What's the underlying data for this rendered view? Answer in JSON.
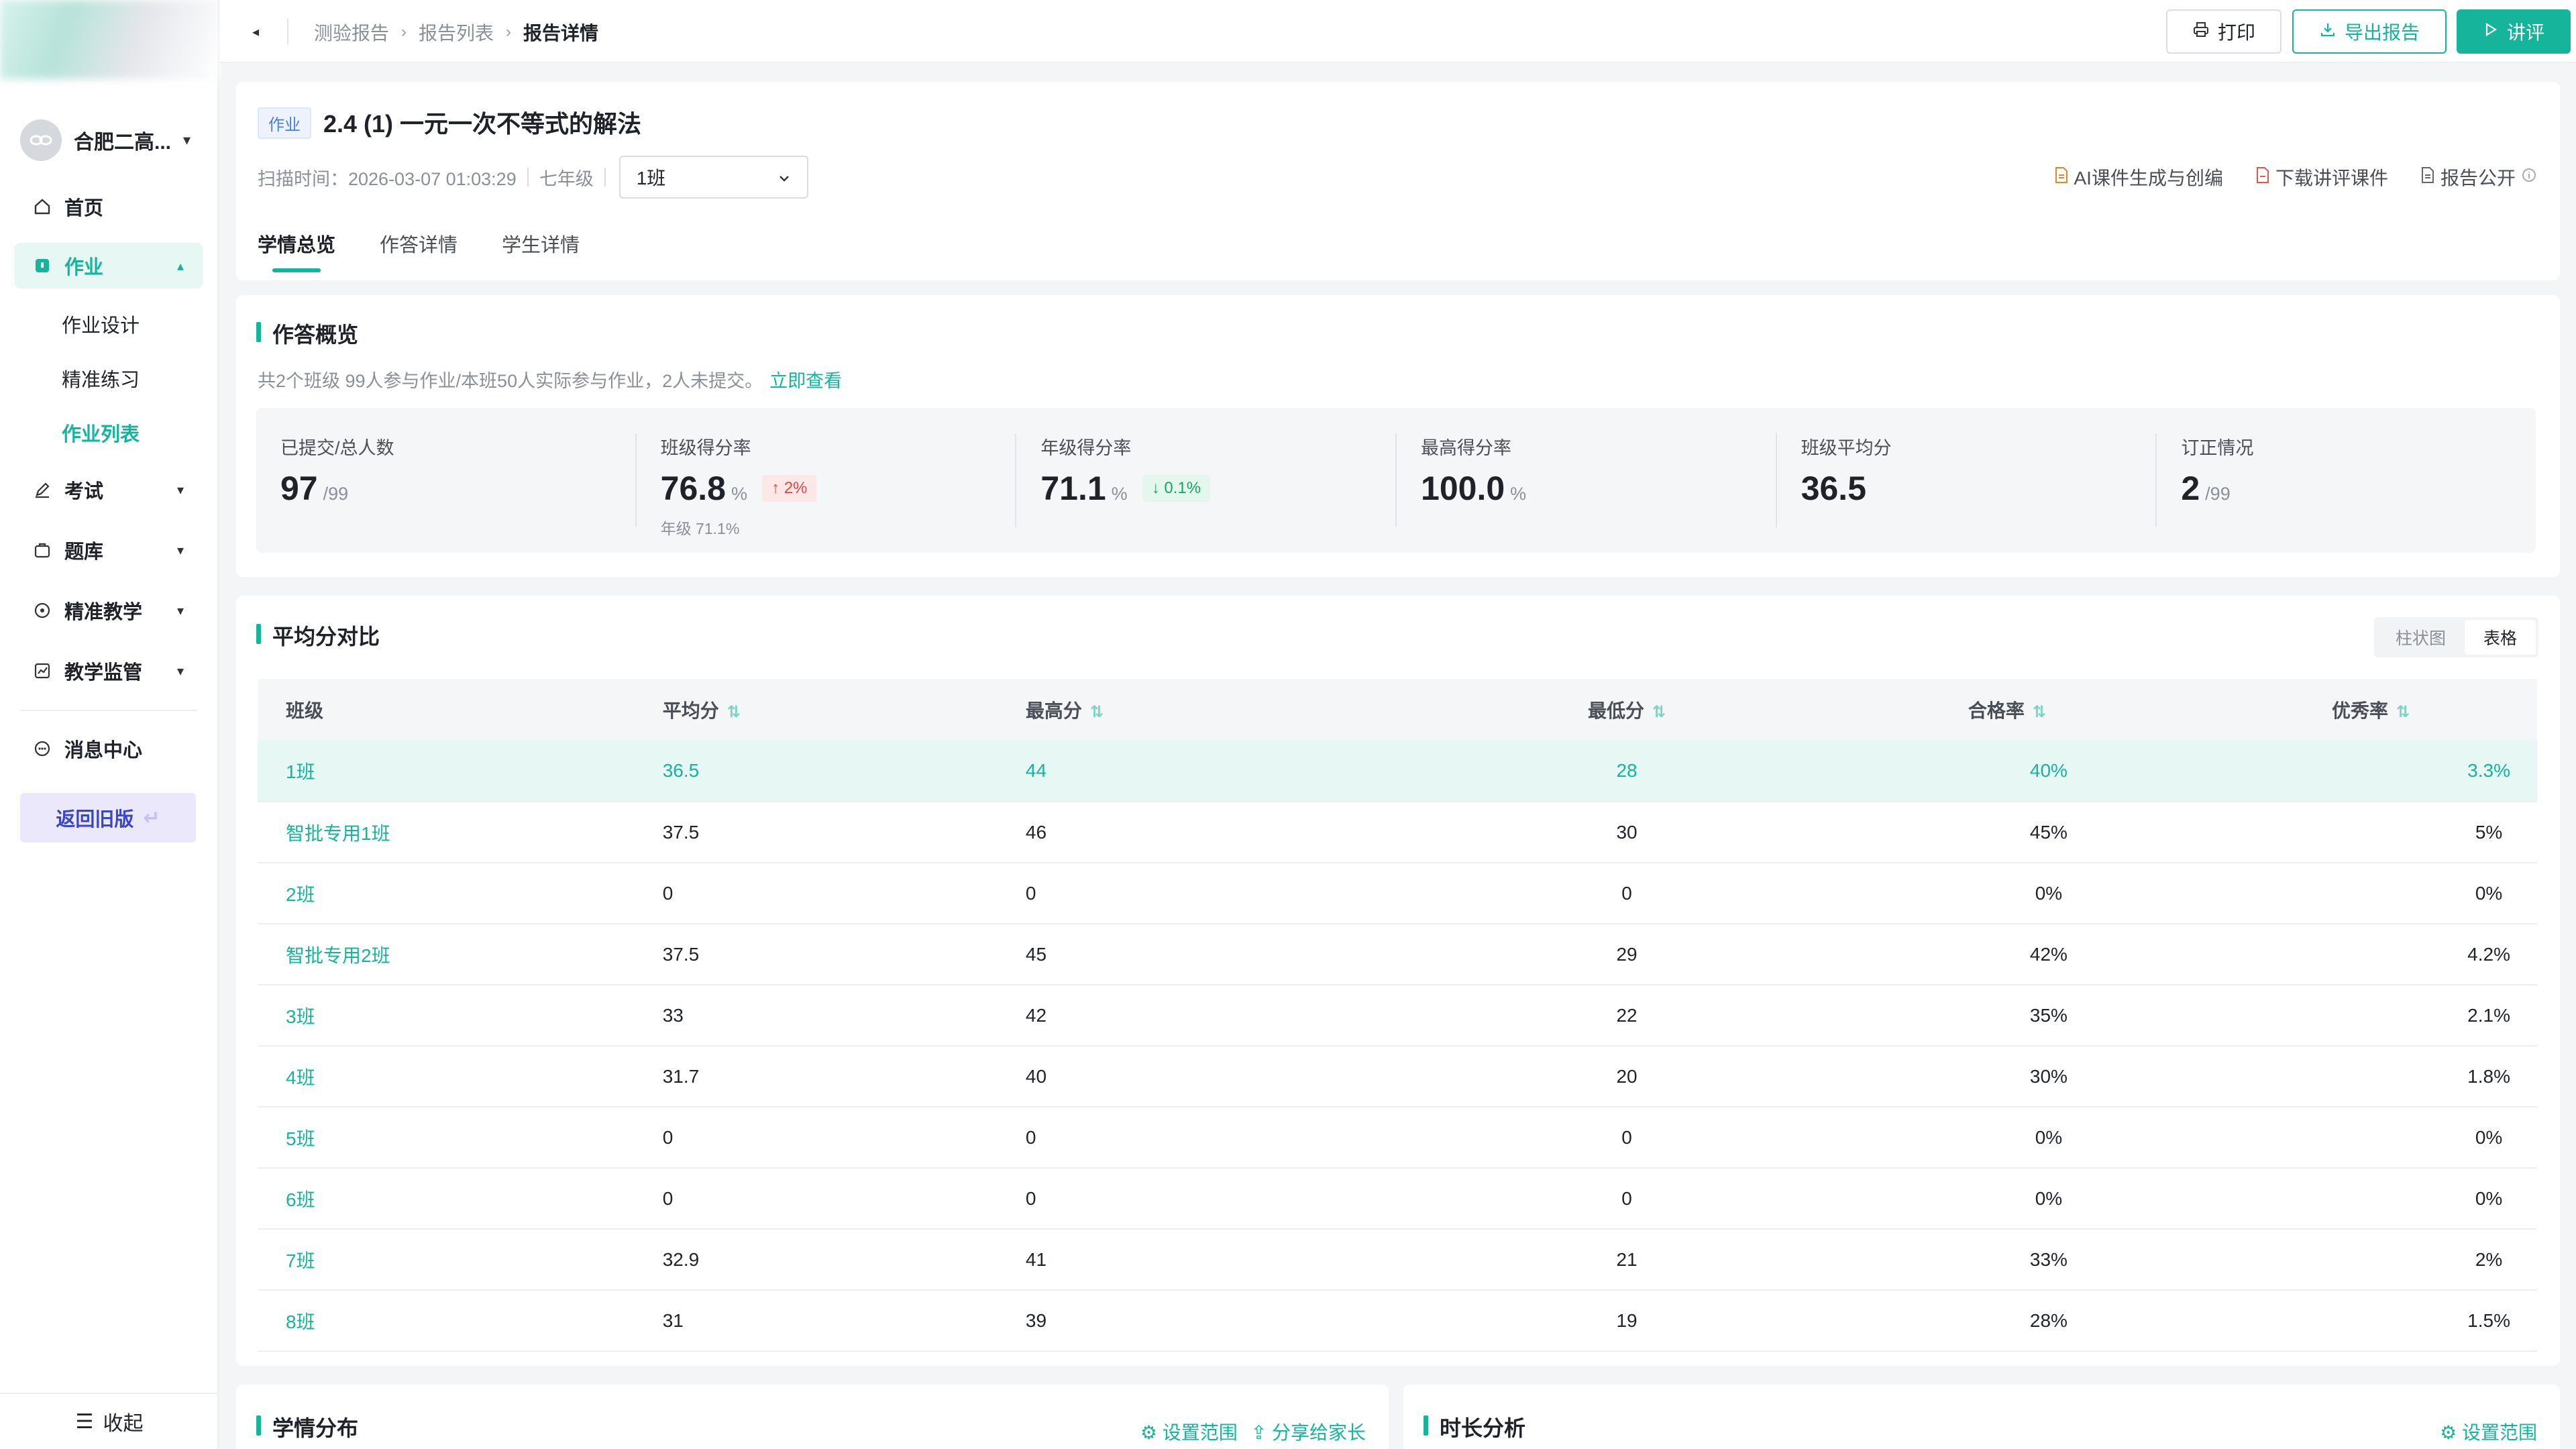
{
  "sidebar": {
    "school": "合肥二高...",
    "nav": {
      "home": "首页",
      "homework": "作业",
      "homework_sub": [
        "作业设计",
        "精准练习",
        "作业列表"
      ],
      "exam": "考试",
      "bank": "题库",
      "teaching": "精准教学",
      "supervise": "教学监管",
      "messages": "消息中心"
    },
    "back_old": "返回旧版",
    "collapse": "收起"
  },
  "topbar": {
    "breadcrumbs": [
      "测验报告",
      "报告列表",
      "报告详情"
    ],
    "print": "打印",
    "export": "导出报告",
    "lecture": "讲评"
  },
  "header": {
    "tag": "作业",
    "title": "2.4 (1) 一元一次不等式的解法",
    "scan_time": "扫描时间：2026-03-07 01:03:29",
    "grade": "七年级",
    "class_selected": "1班",
    "actions": [
      "AI课件生成与创编",
      "下载讲评课件",
      "报告公开"
    ],
    "tabs": [
      "学情总览",
      "作答详情",
      "学生详情"
    ]
  },
  "overview": {
    "title": "作答概览",
    "desc": "共2个班级 99人参与作业/本班50人实际参与作业，2人未提交。",
    "link": "立即查看",
    "stats": [
      {
        "label": "已提交/总人数",
        "value": "97",
        "unit": "/99"
      },
      {
        "label": "班级得分率",
        "value": "76.8",
        "unit": "%",
        "badge": "2%",
        "badge_dir": "up",
        "sub": "年级 71.1%"
      },
      {
        "label": "年级得分率",
        "value": "71.1",
        "unit": "%",
        "badge": "0.1%",
        "badge_dir": "down"
      },
      {
        "label": "最高得分率",
        "value": "100.0",
        "unit": "%"
      },
      {
        "label": "班级平均分",
        "value": "36.5",
        "unit": ""
      },
      {
        "label": "订正情况",
        "value": "2",
        "unit": "/99"
      }
    ]
  },
  "compare": {
    "title": "平均分对比",
    "toggle": [
      "柱状图",
      "表格"
    ],
    "columns": [
      "班级",
      "平均分",
      "最高分",
      "最低分",
      "合格率",
      "优秀率"
    ],
    "rows": [
      [
        "1班",
        "36.5",
        "44",
        "28",
        "40%",
        "3.3%"
      ],
      [
        "智批专用1班",
        "37.5",
        "46",
        "30",
        "45%",
        "5%"
      ],
      [
        "2班",
        "0",
        "0",
        "0",
        "0%",
        "0%"
      ],
      [
        "智批专用2班",
        "37.5",
        "45",
        "29",
        "42%",
        "4.2%"
      ],
      [
        "3班",
        "33",
        "42",
        "22",
        "35%",
        "2.1%"
      ],
      [
        "4班",
        "31.7",
        "40",
        "20",
        "30%",
        "1.8%"
      ],
      [
        "5班",
        "0",
        "0",
        "0",
        "0%",
        "0%"
      ],
      [
        "6班",
        "0",
        "0",
        "0",
        "0%",
        "0%"
      ],
      [
        "7班",
        "32.9",
        "41",
        "21",
        "33%",
        "2%"
      ],
      [
        "8班",
        "31",
        "39",
        "19",
        "28%",
        "1.5%"
      ]
    ]
  },
  "distribution": {
    "title": "学情分布",
    "set_range": "设置范围",
    "share": "分享给家长"
  },
  "duration": {
    "title": "时长分析",
    "set_range": "设置范围"
  },
  "colors": {
    "accent": "#15b49b",
    "up": "#e54545",
    "down": "#19a463"
  }
}
